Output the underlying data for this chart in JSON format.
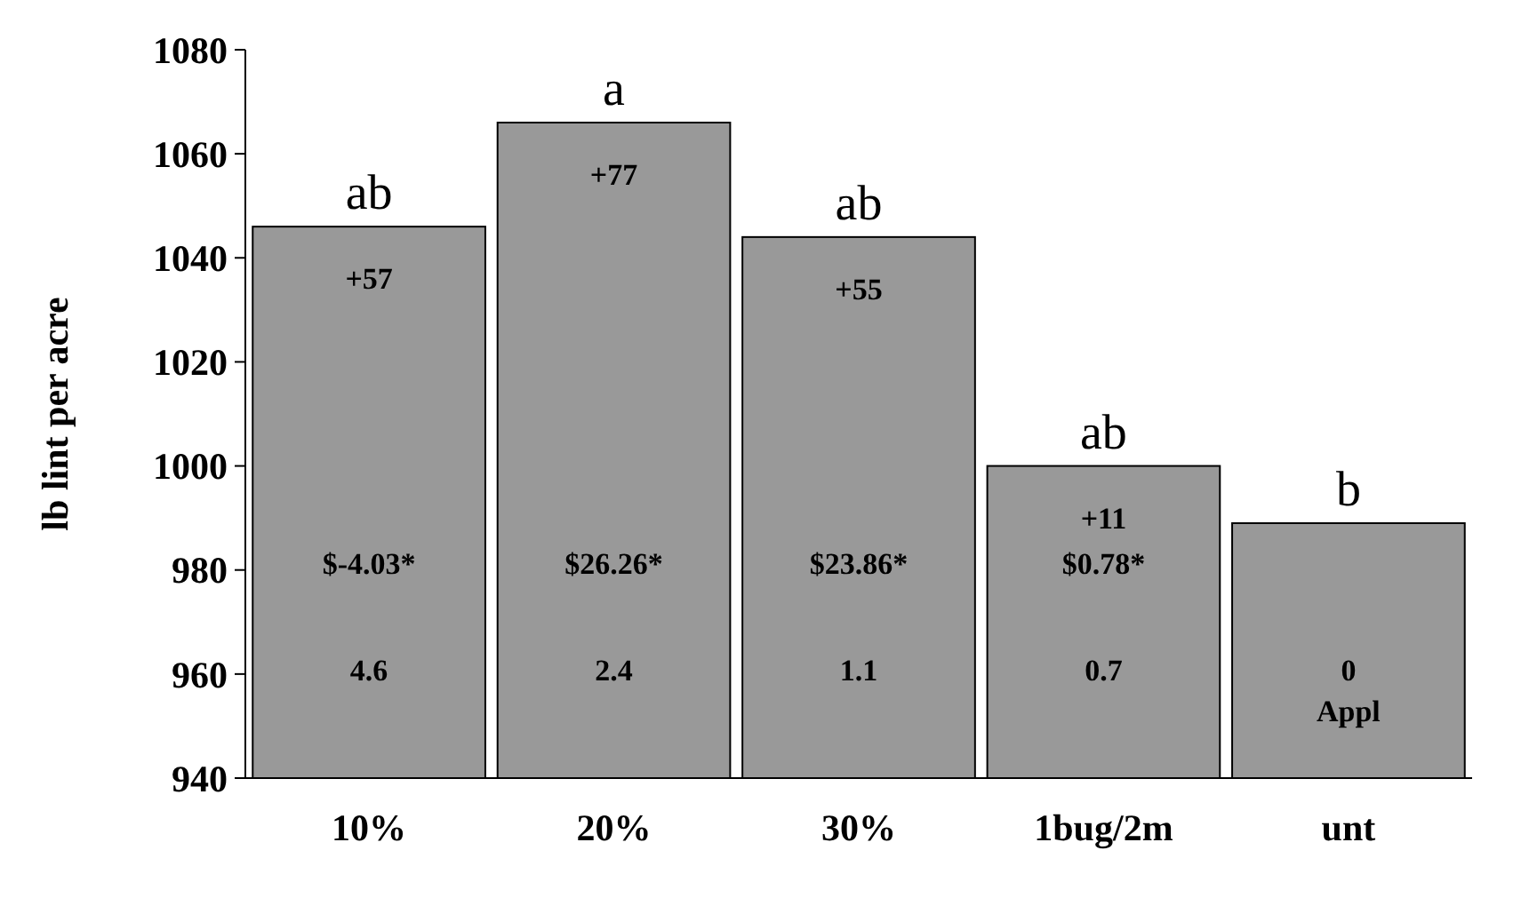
{
  "chart_data": {
    "type": "bar",
    "ylabel": "lb lint per acre",
    "categories": [
      "10%",
      "20%",
      "30%",
      "1bug/2m",
      "unt"
    ],
    "values": [
      1046,
      1066,
      1044,
      1000,
      989
    ],
    "color": "#999999",
    "ylim": [
      940,
      1080
    ],
    "yticks": [
      940,
      960,
      980,
      1000,
      1020,
      1040,
      1060,
      1080
    ],
    "annotations": [
      "ab",
      "a",
      "ab",
      "ab",
      "b",
      "+57",
      "+77",
      "+55",
      "+11",
      "$-4.03*",
      "$26.26*",
      "$23.86*",
      "$0.78*",
      "4.6",
      "2.4",
      "1.1",
      "0.7",
      "0",
      "Appl"
    ]
  }
}
